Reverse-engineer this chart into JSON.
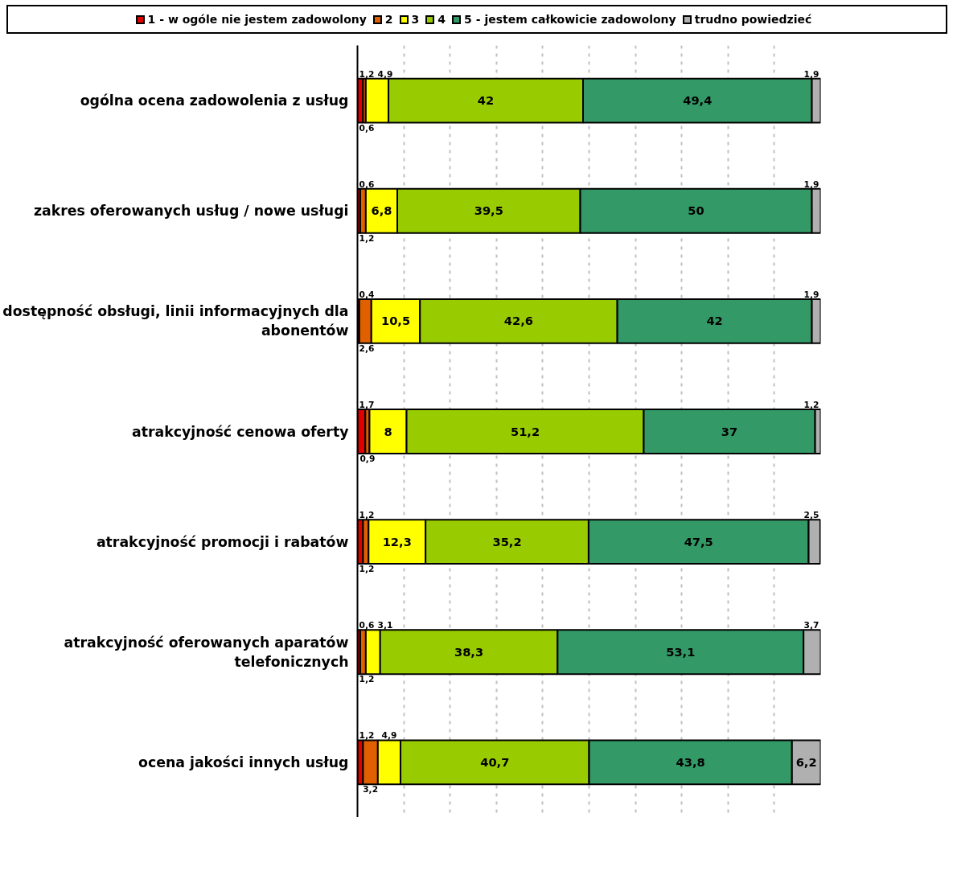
{
  "chart_data": {
    "type": "bar",
    "orientation": "horizontal",
    "stacked": true,
    "categories": [
      "ogólna ocena zadowolenia z usług",
      "zakres oferowanych usług / nowe usługi",
      "dostępność obsługi, linii informacyjnych dla abonentów",
      "atrakcyjność cenowa oferty",
      "atrakcyjność promocji i rabatów",
      "atrakcyjność oferowanych aparatów telefonicznych",
      "ocena jakości innych usług"
    ],
    "series": [
      {
        "name": "1 - w ogóle nie jestem zadowolony",
        "color": "#e00000",
        "values": [
          1.2,
          0.6,
          0.4,
          1.7,
          1.2,
          0.6,
          1.2
        ],
        "value_labels": [
          "1,2",
          "0,6",
          "0,4",
          "1,7",
          "1,2",
          "0,6",
          "1,2"
        ]
      },
      {
        "name": "2",
        "color": "#e06000",
        "values": [
          0.6,
          1.2,
          2.6,
          0.9,
          1.2,
          1.2,
          3.2
        ],
        "value_labels": [
          "0,6",
          "1,2",
          "2,6",
          "0,9",
          "1,2",
          "1,2",
          "3,2"
        ]
      },
      {
        "name": "3",
        "color": "#ffff00",
        "values": [
          4.9,
          6.8,
          10.5,
          8,
          12.3,
          3.1,
          4.9
        ],
        "value_labels": [
          "4,9",
          "6,8",
          "10,5",
          "8",
          "12,3",
          "3,1",
          "4,9"
        ]
      },
      {
        "name": "4",
        "color": "#99cc00",
        "values": [
          42,
          39.5,
          42.6,
          51.2,
          35.2,
          38.3,
          40.7
        ],
        "value_labels": [
          "42",
          "39,5",
          "42,6",
          "51,2",
          "35,2",
          "38,3",
          "40,7"
        ]
      },
      {
        "name": "5 - jestem całkowicie zadowolony",
        "color": "#339966",
        "values": [
          49.4,
          50,
          42,
          37,
          47.5,
          53.1,
          43.8
        ],
        "value_labels": [
          "49,4",
          "50",
          "42",
          "37",
          "47,5",
          "53,1",
          "43,8"
        ]
      },
      {
        "name": "trudno powiedzieć",
        "color": "#b0b0b0",
        "values": [
          1.9,
          1.9,
          1.9,
          1.2,
          2.5,
          3.7,
          6.2
        ],
        "value_labels": [
          "1,9",
          "1,9",
          "1,9",
          "1,2",
          "2,5",
          "3,7",
          "6,2"
        ]
      }
    ],
    "xlim": [
      0,
      100
    ],
    "xticks": [
      {
        "value": 0,
        "label": null
      },
      {
        "value": 10,
        "label": null
      },
      {
        "value": 20,
        "label": null
      },
      {
        "value": 30,
        "label": null
      },
      {
        "value": 40,
        "label": null
      },
      {
        "value": 50,
        "label": null
      },
      {
        "value": 60,
        "label": null
      },
      {
        "value": 70,
        "label": null
      },
      {
        "value": 80,
        "label": null
      },
      {
        "value": 90,
        "label": null
      }
    ],
    "tick_labels": "y",
    "grid": "x",
    "legend": "top"
  }
}
